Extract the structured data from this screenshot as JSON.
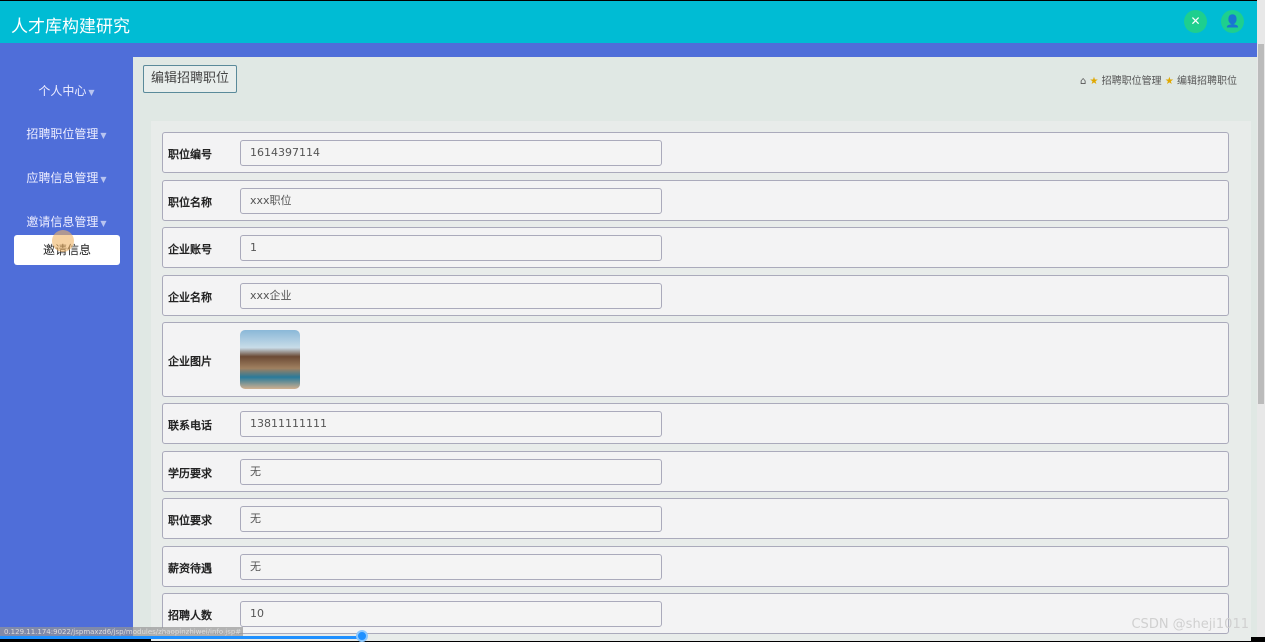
{
  "header": {
    "title": "人才库构建研究",
    "icons": [
      "fullscreen-icon",
      "user-icon"
    ]
  },
  "sidebar": {
    "items": [
      {
        "label": "个人中心"
      },
      {
        "label": "招聘职位管理"
      },
      {
        "label": "应聘信息管理"
      },
      {
        "label": "邀请信息管理"
      }
    ],
    "submenu": {
      "label": "邀请信息"
    }
  },
  "main": {
    "page_button": "编辑招聘职位",
    "breadcrumb": [
      "招聘职位管理",
      "编辑招聘职位"
    ]
  },
  "form": {
    "fields": [
      {
        "label": "职位编号",
        "value": "1614397114"
      },
      {
        "label": "职位名称",
        "value": "xxx职位"
      },
      {
        "label": "企业账号",
        "value": "1"
      },
      {
        "label": "企业名称",
        "value": "xxx企业"
      },
      {
        "label": "企业图片",
        "value": ""
      },
      {
        "label": "联系电话",
        "value": "13811111111"
      },
      {
        "label": "学历要求",
        "value": "无"
      },
      {
        "label": "职位要求",
        "value": "无"
      },
      {
        "label": "薪资待遇",
        "value": "无"
      },
      {
        "label": "招聘人数",
        "value": "10"
      }
    ]
  },
  "statusbar": {
    "url": "0.129.11.174:9022/jspmaxzd6/jsp/modules/zhaopinzhiwei/info.jsp#"
  },
  "watermark": "CSDN @sheji1011",
  "colors": {
    "header": "#00bcd4",
    "sidebar": "#4f6ed9",
    "icon_button": "#1ecf8e"
  }
}
